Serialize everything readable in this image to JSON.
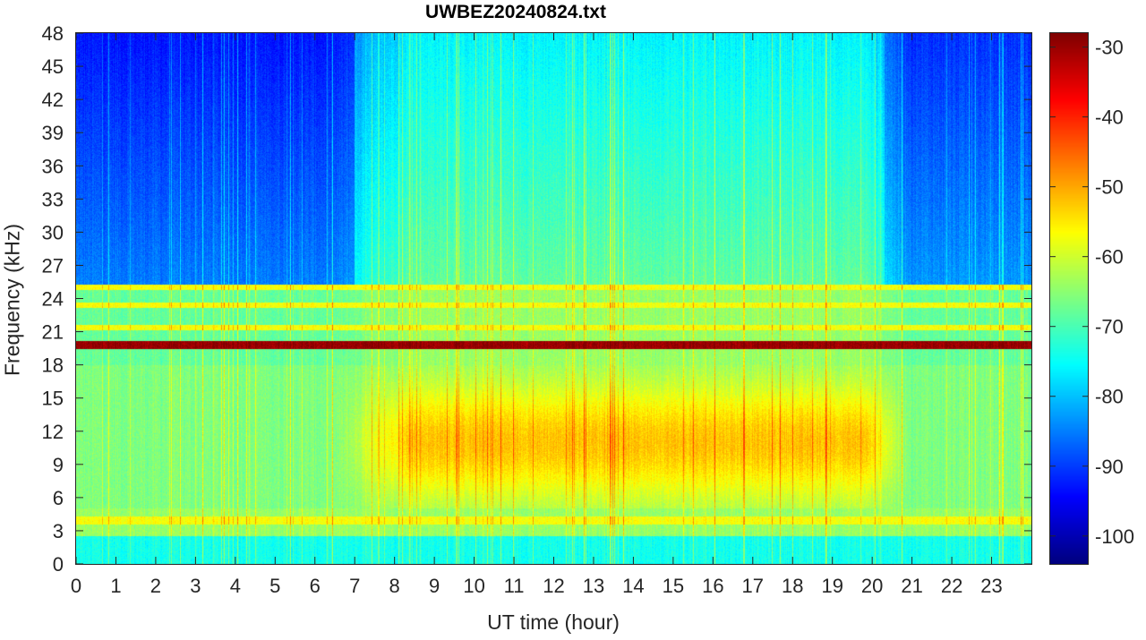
{
  "chart_data": {
    "type": "heatmap",
    "title": "UWBEZ20240824.txt",
    "xlabel": "UT time (hour)",
    "ylabel": "Frequency (kHz)",
    "xlim": [
      0,
      24
    ],
    "ylim": [
      0,
      48
    ],
    "x_ticks": [
      "0",
      "1",
      "2",
      "3",
      "4",
      "5",
      "6",
      "7",
      "8",
      "9",
      "10",
      "11",
      "12",
      "13",
      "14",
      "15",
      "16",
      "17",
      "18",
      "19",
      "20",
      "21",
      "22",
      "23"
    ],
    "y_ticks": [
      "0",
      "3",
      "6",
      "9",
      "12",
      "15",
      "18",
      "21",
      "24",
      "27",
      "30",
      "33",
      "36",
      "39",
      "42",
      "45",
      "48"
    ],
    "colorbar": {
      "colormap": "jet",
      "clim": [
        -104,
        -28
      ],
      "ticks": [
        "-30",
        "-40",
        "-50",
        "-60",
        "-70",
        "-80",
        "-90",
        "-100"
      ]
    },
    "features": {
      "strong_tone_khz": 19.8,
      "tones_khz": [
        21.4,
        23.4,
        25.0,
        4.0,
        3.8
      ],
      "enhanced_band_khz": [
        6,
        17
      ],
      "enhanced_hours": [
        7.5,
        20.5
      ],
      "quiet_high_band_hours": [
        [
          0,
          7
        ],
        [
          20,
          24
        ]
      ]
    }
  }
}
